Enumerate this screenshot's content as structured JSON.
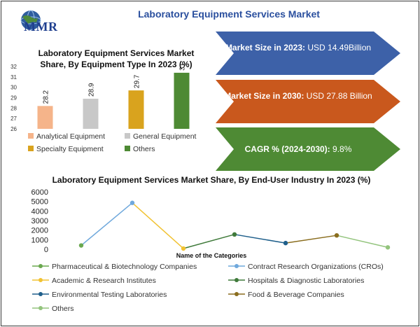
{
  "header": {
    "logo_text": "MMR",
    "title": "Laboratory Equipment Services Market"
  },
  "highlights": [
    {
      "label": "Market Size in 2023:",
      "value": "USD 14.49Billion",
      "color": "#3d61a8"
    },
    {
      "label": "Market Size in 2030:",
      "value": "USD 27.88 Billion",
      "color": "#c9581d"
    },
    {
      "label": "CAGR % (2024-2030):",
      "value": "9.8%",
      "color": "#4e8a34"
    }
  ],
  "chart_data": [
    {
      "type": "bar",
      "title": "Laboratory Equipment Services Market Share, By Equipment Type In 2023 (%)",
      "categories": [
        "Analytical Equipment",
        "General Equipment",
        "Specialty Equipment",
        "Others"
      ],
      "values": [
        28.2,
        28.9,
        29.7,
        31.4
      ],
      "data_labels": [
        "28.2",
        "28.9",
        "29.7",
        "31.4"
      ],
      "colors": [
        "#f5b48a",
        "#c8c8c8",
        "#d9a31e",
        "#4e8a34"
      ],
      "ylim": [
        26,
        32
      ],
      "yticks": [
        26,
        27,
        28,
        29,
        30,
        31,
        32
      ],
      "xlabel": "",
      "ylabel": "",
      "grid": false,
      "legend": "bottom"
    },
    {
      "type": "line",
      "title": "Laboratory Equipment Services Market Share, By End-User Industry In 2023 (%)",
      "xlabel": "Name of the Categories",
      "ylabel": "",
      "categories": [
        "Pharmaceutical & Biotechnology Companies",
        "Contract Research Organizations (CROs)",
        "Academic & Research Institutes",
        "Hospitals & Diagnostic Laboratories",
        "Environmental Testing Laboratories",
        "Food & Beverage Companies",
        "Others"
      ],
      "values": [
        400,
        4850,
        80,
        1550,
        650,
        1450,
        200
      ],
      "colors": [
        "#6aa84f",
        "#6fa8dc",
        "#f1c232",
        "#3f7a3a",
        "#1f5f8b",
        "#8a6d1e",
        "#93c47d"
      ],
      "ylim": [
        0,
        6000
      ],
      "yticks": [
        0,
        1000,
        2000,
        3000,
        4000,
        5000,
        6000
      ],
      "grid": false,
      "legend": "bottom"
    }
  ]
}
